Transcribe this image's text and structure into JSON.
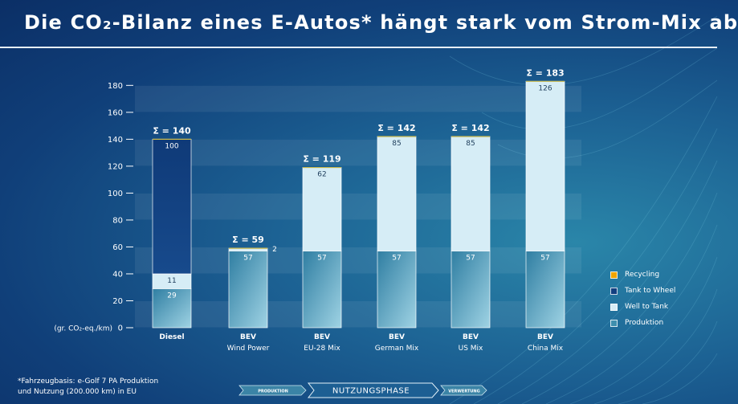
{
  "title": "Die CO₂-Bilanz eines E-Autos* hängt stark vom Strom-Mix ab",
  "chart_data": {
    "type": "bar",
    "stacked": true,
    "ylabel": "(gr. CO₂-eq./km)",
    "ylim": [
      0,
      180
    ],
    "yticks": [
      0,
      20,
      40,
      60,
      80,
      100,
      120,
      140,
      160,
      180
    ],
    "grid": "horizontal bands",
    "legend_position": "right",
    "categories": [
      {
        "line1": "Diesel",
        "line2": ""
      },
      {
        "line1": "BEV",
        "line2": "Wind Power"
      },
      {
        "line1": "BEV",
        "line2": "EU-28 Mix"
      },
      {
        "line1": "BEV",
        "line2": "German Mix"
      },
      {
        "line1": "BEV",
        "line2": "US Mix"
      },
      {
        "line1": "BEV",
        "line2": "China Mix"
      }
    ],
    "series": [
      {
        "name": "Produktion",
        "color": "#3f8fae",
        "values": [
          29,
          57,
          57,
          57,
          57,
          57
        ]
      },
      {
        "name": "Well to Tank",
        "color": "#d6edf6",
        "values": [
          11,
          2,
          62,
          85,
          85,
          126
        ]
      },
      {
        "name": "Tank to Wheel",
        "color": "#123f80",
        "values": [
          100,
          0,
          0,
          0,
          0,
          0
        ]
      },
      {
        "name": "Recycling",
        "color": "#f0a500",
        "values": [
          0,
          0,
          0,
          0,
          0,
          0
        ]
      }
    ],
    "totals": [
      "Σ = 140",
      "Σ = 59",
      "Σ = 119",
      "Σ = 142",
      "Σ = 142",
      "Σ = 183"
    ],
    "segment_labels": [
      [
        "29",
        "11",
        "100"
      ],
      [
        "57",
        "2",
        ""
      ],
      [
        "57",
        "62",
        ""
      ],
      [
        "57",
        "85",
        ""
      ],
      [
        "57",
        "85",
        ""
      ],
      [
        "57",
        "126",
        ""
      ]
    ]
  },
  "legend": [
    {
      "label": "Recycling",
      "color": "#f0a500"
    },
    {
      "label": "Tank to Wheel",
      "color": "#123f80"
    },
    {
      "label": "Well to Tank",
      "color": "#d6edf6"
    },
    {
      "label": "Produktion",
      "color": "#3f8fae"
    }
  ],
  "footnote": {
    "line1": "*Fahrzeugbasis: e-Golf 7 PA Produktion",
    "line2": "und Nutzung (200.000 km) in EU"
  },
  "phases": {
    "left": "PRODUKTION",
    "middle": "NUTZUNGSPHASE",
    "right": "VERWERTUNG"
  }
}
